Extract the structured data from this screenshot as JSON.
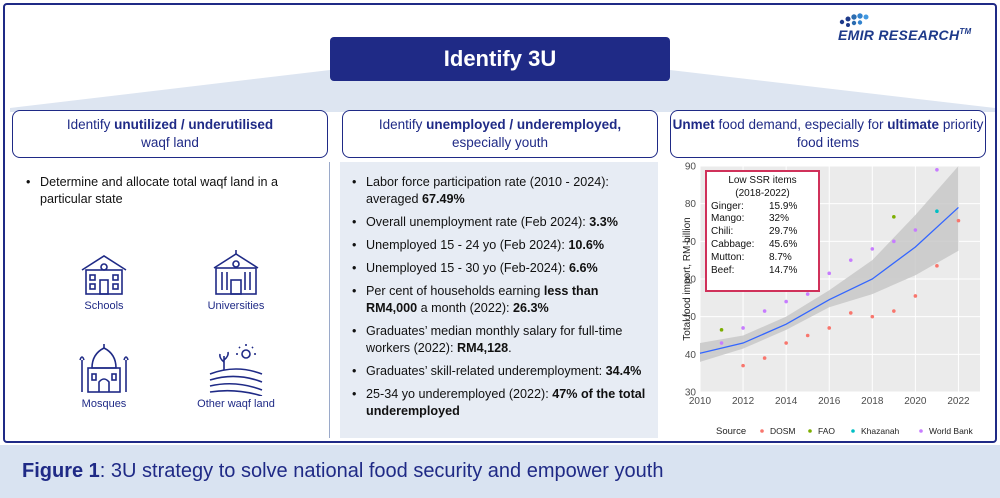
{
  "logo": {
    "name": "EMIR RESEARCH",
    "tm": "TM"
  },
  "title": "Identify 3U",
  "columns": [
    {
      "head_pre": "Identify ",
      "head_bold": "unutilized / underutilised",
      "head_post": "waqf land"
    },
    {
      "head_pre": "Identify ",
      "head_bold": "unemployed / underemployed,",
      "head_post": "especially youth"
    },
    {
      "head_bold1": "Unmet",
      "head_mid": " food demand, especially for ",
      "head_bold2": "ultimate",
      "head_post1": " priority",
      "head_post2": "food items"
    }
  ],
  "land": {
    "bullet": "Determine and allocate total waqf land in a particular state",
    "icons": [
      {
        "label": "Schools",
        "icon": "school-icon"
      },
      {
        "label": "Universities",
        "icon": "university-icon"
      },
      {
        "label": "Mosques",
        "icon": "mosque-icon"
      },
      {
        "label": "Other waqf land",
        "icon": "field-icon"
      }
    ]
  },
  "youth": {
    "bullets": [
      {
        "text": "Labor force participation rate (2010 - 2024): averaged ",
        "bold": "67.49%",
        "tail": ""
      },
      {
        "text": "Overall unemployment rate (Feb 2024): ",
        "bold": "3.3%",
        "tail": ""
      },
      {
        "text": "Unemployed 15 - 24 yo (Feb 2024): ",
        "bold": "10.6%",
        "tail": ""
      },
      {
        "text": "Unemployed 15 - 30 yo (Feb-2024): ",
        "bold": "6.6%",
        "tail": ""
      },
      {
        "text": "Per cent of households earning ",
        "bold": "less than RM4,000",
        "tail": " a month (2022): ",
        "bold2": "26.3%"
      },
      {
        "text": "Graduates’ median monthly salary for full-time workers (2022): ",
        "bold": "RM4,128",
        "tail": "."
      },
      {
        "text": "Graduates’ skill-related underemployment: ",
        "bold": "34.4%",
        "tail": ""
      },
      {
        "text": "25-34 yo underemployed (2022): ",
        "bold": "47% of the total underemployed",
        "tail": ""
      }
    ]
  },
  "ssr": {
    "title1": "Low SSR items",
    "title2": "(2018-2022)",
    "items": [
      {
        "name": "Ginger:",
        "value": "15.9%"
      },
      {
        "name": "Mango:",
        "value": "32%"
      },
      {
        "name": "Chili:",
        "value": "29.7%"
      },
      {
        "name": "Cabbage:",
        "value": "45.6%"
      },
      {
        "name": "Mutton:",
        "value": "8.7%"
      },
      {
        "name": "Beef:",
        "value": "14.7%"
      }
    ]
  },
  "chart_data": {
    "type": "scatter",
    "ylabel": "Total food import, RM billion",
    "xlabel": "",
    "xlim": [
      2010,
      2023
    ],
    "ylim": [
      30,
      90
    ],
    "xticks": [
      2010,
      2012,
      2014,
      2016,
      2018,
      2020,
      2022
    ],
    "yticks": [
      30,
      40,
      50,
      60,
      70,
      80,
      90
    ],
    "legend_title": "Source",
    "legend_position": "bottom",
    "series": [
      {
        "name": "DOSM",
        "color": "#f8766d",
        "x": [
          2012,
          2013,
          2014,
          2015,
          2016,
          2017,
          2018,
          2019,
          2020,
          2021,
          2022
        ],
        "y": [
          37,
          39,
          43,
          45,
          47,
          51,
          50,
          51.5,
          55.5,
          63.5,
          75.5
        ]
      },
      {
        "name": "FAO",
        "color": "#7cae00",
        "x": [
          2011,
          2019
        ],
        "y": [
          46.5,
          76.5
        ]
      },
      {
        "name": "Khazanah",
        "color": "#00bfc4",
        "x": [
          2021
        ],
        "y": [
          78
        ]
      },
      {
        "name": "World Bank",
        "color": "#c77cff",
        "x": [
          2011,
          2012,
          2013,
          2014,
          2015,
          2016,
          2017,
          2018,
          2019,
          2020,
          2021
        ],
        "y": [
          43,
          47,
          51.5,
          54,
          56,
          61.5,
          65,
          68,
          70,
          73,
          89
        ]
      }
    ],
    "trend": {
      "x": [
        2010,
        2012,
        2014,
        2016,
        2018,
        2020,
        2022
      ],
      "y": [
        40.3,
        43,
        48,
        54.5,
        60,
        68.5,
        79
      ],
      "lo": [
        38,
        41.5,
        46.5,
        52.5,
        56,
        61,
        67.5
      ],
      "hi": [
        43,
        45,
        50,
        57,
        65,
        77,
        90
      ],
      "line_color": "#3366ff",
      "band_color": "#c8c8c8"
    }
  },
  "footer": {
    "label": "Figure 1",
    "text": ": 3U strategy to solve national food security and empower youth"
  }
}
